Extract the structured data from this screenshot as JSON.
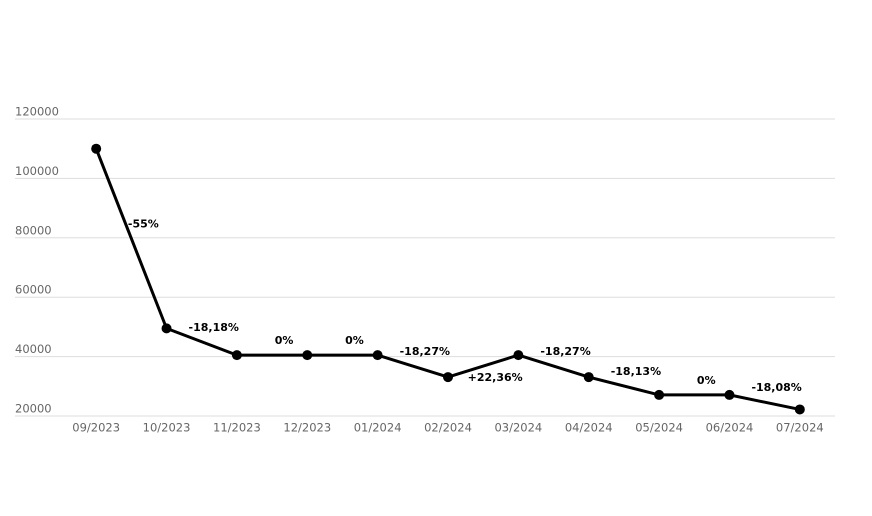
{
  "chart_data": {
    "type": "line",
    "categories": [
      "09/2023",
      "10/2023",
      "11/2023",
      "12/2023",
      "01/2024",
      "02/2024",
      "03/2024",
      "04/2024",
      "05/2024",
      "06/2024",
      "07/2024"
    ],
    "values": [
      110000,
      49500,
      40500,
      40500,
      40500,
      33100,
      40500,
      33100,
      27100,
      27100,
      22200
    ],
    "change_labels": [
      "-55%",
      "-18,18%",
      "0%",
      "0%",
      "-18,27%",
      "+22,36%",
      "-18,27%",
      "-18,13%",
      "0%",
      "-18,08%"
    ],
    "color": "#000000",
    "ylim": [
      20000,
      120000
    ],
    "yticks": [
      20000,
      40000,
      60000,
      80000,
      100000,
      120000
    ],
    "grid": true
  }
}
